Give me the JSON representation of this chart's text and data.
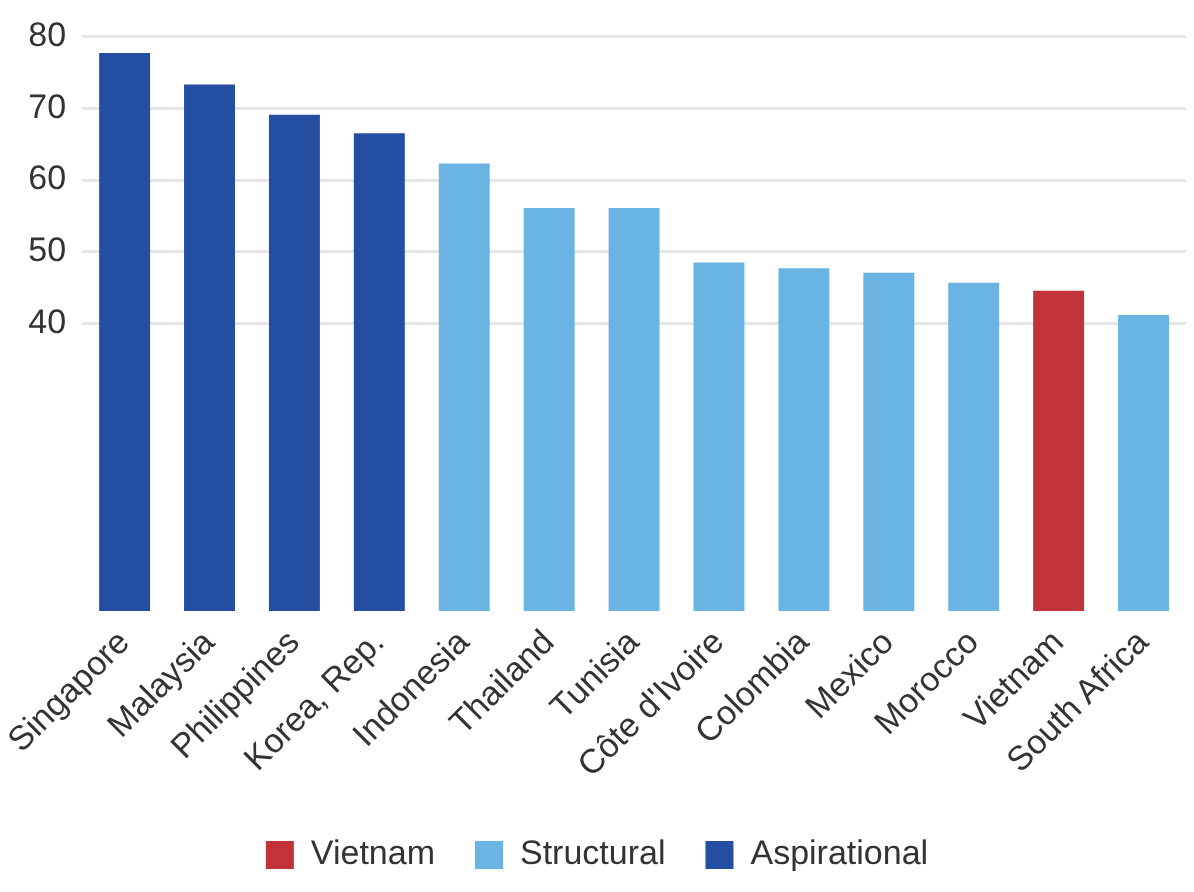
{
  "chart_data": {
    "type": "bar",
    "stacked": true,
    "categories": [
      "Singapore",
      "Malaysia",
      "Philippines",
      "Korea, Rep.",
      "Indonesia",
      "Thailand",
      "Tunisia",
      "Côte d'Ivoire",
      "Colombia",
      "Mexico",
      "Morocco",
      "Vietnam",
      "South Africa"
    ],
    "series": [
      {
        "name": "Vietnam",
        "color": "#c1323a",
        "values": [
          null,
          null,
          null,
          null,
          null,
          null,
          null,
          null,
          null,
          null,
          null,
          44.6,
          null
        ]
      },
      {
        "name": "Structural",
        "color": "#69b4e3",
        "values": [
          null,
          null,
          null,
          null,
          62.3,
          56.1,
          56.1,
          48.5,
          47.7,
          47.1,
          45.7,
          null,
          41.2
        ]
      },
      {
        "name": "Aspirational",
        "color": "#244ea2",
        "values": [
          77.7,
          73.3,
          69.1,
          66.5,
          null,
          null,
          null,
          null,
          null,
          null,
          null,
          null,
          null
        ]
      }
    ],
    "ylim": [
      0,
      80
    ],
    "yticks": [
      40,
      50,
      60,
      70,
      80
    ],
    "grid": "y",
    "legend": "bottom"
  }
}
